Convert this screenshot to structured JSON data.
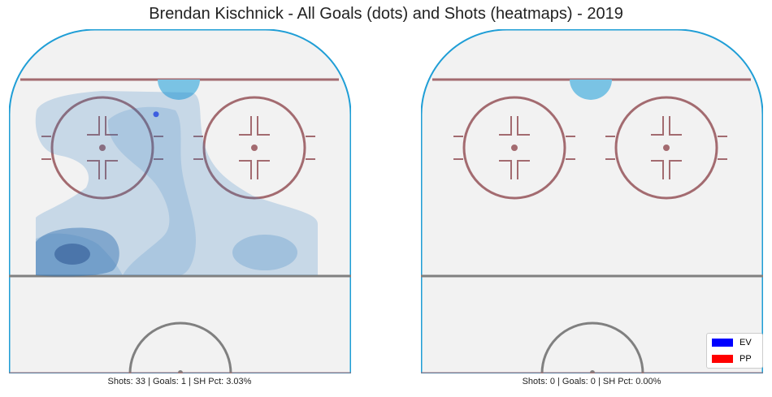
{
  "title": "Brendan Kischnick - All Goals (dots) and Shots (heatmaps) - 2019",
  "colors": {
    "board": "#1f9ed6",
    "ice": "#f2f2f2",
    "red_line": "#a36b70",
    "center_line": "#808080",
    "crease": "#7ac3e4",
    "ev": "#0000ff",
    "pp": "#ff0000"
  },
  "legend": {
    "placement": "lower-right",
    "items": [
      {
        "label": "EV",
        "color": "#0000ff"
      },
      {
        "label": "PP",
        "color": "#ff0000"
      }
    ]
  },
  "chart_data": [
    {
      "type": "heatmap",
      "caption": "Shots: 33 | Goals: 1 | SH Pct: 3.03%",
      "shots": 33,
      "goals": 1,
      "sh_pct": "3.03%",
      "goal_points": [
        {
          "x": 0.43,
          "y": 0.247,
          "situation": "EV"
        }
      ]
    },
    {
      "type": "heatmap",
      "caption": "Shots: 0 | Goals: 0 | SH Pct: 0.00%",
      "shots": 0,
      "goals": 0,
      "sh_pct": "0.00%",
      "goal_points": []
    }
  ]
}
